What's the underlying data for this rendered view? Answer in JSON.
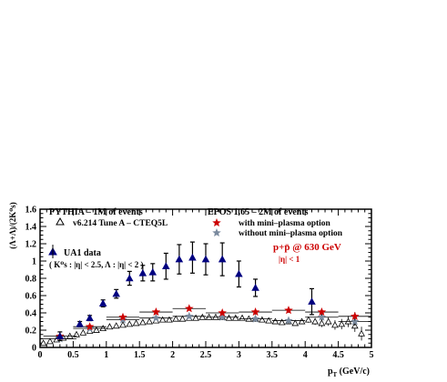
{
  "chart_data": {
    "type": "scatter",
    "xlabel_main": "p",
    "xlabel_sub": "T",
    "xlabel_unit": " (GeV/c)",
    "ylabel": "(Λ+Λ)/(2K⁰s)",
    "xlim": [
      0,
      5
    ],
    "ylim": [
      0,
      1.6
    ],
    "x_ticks": [
      0,
      0.5,
      1,
      1.5,
      2,
      2.5,
      3,
      3.5,
      4,
      4.5,
      5
    ],
    "x_tick_labels": [
      "0",
      "0.5",
      "1",
      "1.5",
      "2",
      "2.5",
      "3",
      "3.5",
      "4",
      "4.5",
      "5"
    ],
    "y_ticks": [
      0,
      0.2,
      0.4,
      0.6,
      0.8,
      1,
      1.2,
      1.4,
      1.6
    ],
    "y_tick_labels": [
      "0",
      "0.2",
      "0.4",
      "0.6",
      "0.8",
      "1",
      "1.2",
      "1.4",
      "1.6"
    ],
    "grid": false,
    "legend_left_title": "PYTHIA  – 1M of events",
    "legend_left_entry": "v6.214 Tune A – CTEQ5L",
    "legend_right_title": "EPOS 1.65  – 2M of events",
    "legend_right_entry1": "with mini–plasma option",
    "legend_right_entry2": "without mini–plasma option",
    "legend_ua1": "UA1 data",
    "legend_ua1_cuts": "( K⁰s : |η| < 2.5, Λ : |η| < 2 )",
    "annotation_system": "p+p̄ @ 630 GeV",
    "annotation_eta": "|η| < 1",
    "colors": {
      "ua1": "#000080",
      "epos_with": "#cc0000",
      "epos_without": "#7a8a9e",
      "pythia": "#000000",
      "annotation": "#cc0000",
      "axes": "#000000"
    },
    "series": [
      {
        "name": "UA1 data",
        "marker": "filled-triangle",
        "x": [
          0.3,
          0.6,
          0.75,
          0.95,
          1.15,
          1.35,
          1.55,
          1.7,
          1.9,
          2.1,
          2.3,
          2.5,
          2.75,
          3.0,
          3.25,
          4.1
        ],
        "y": [
          0.13,
          0.27,
          0.34,
          0.51,
          0.62,
          0.8,
          0.86,
          0.87,
          0.94,
          1.02,
          1.04,
          1.02,
          1.02,
          0.85,
          0.69,
          0.53
        ],
        "err": [
          0.05,
          0.03,
          0.03,
          0.04,
          0.05,
          0.08,
          0.09,
          0.1,
          0.15,
          0.17,
          0.18,
          0.18,
          0.19,
          0.15,
          0.1,
          0.15
        ]
      },
      {
        "name": "with mini–plasma option",
        "marker": "star",
        "x": [
          0.3,
          0.75,
          1.25,
          1.75,
          2.25,
          2.75,
          3.25,
          3.75,
          4.25,
          4.75
        ],
        "y": [
          0.13,
          0.24,
          0.35,
          0.41,
          0.45,
          0.4,
          0.41,
          0.43,
          0.41,
          0.36
        ],
        "err": [
          0.02,
          0.02,
          0.02,
          0.02,
          0.02,
          0.02,
          0.03,
          0.03,
          0.04,
          0.05
        ]
      },
      {
        "name": "without mini–plasma option",
        "marker": "star",
        "x": [
          0.3,
          0.75,
          1.25,
          1.75,
          2.25,
          2.75,
          3.25,
          3.75,
          4.25,
          4.75
        ],
        "y": [
          0.1,
          0.22,
          0.32,
          0.34,
          0.36,
          0.35,
          0.33,
          0.31,
          0.35,
          0.3
        ],
        "err": [
          0.02,
          0.02,
          0.02,
          0.02,
          0.02,
          0.02,
          0.03,
          0.03,
          0.04,
          0.05
        ]
      },
      {
        "name": "v6.214 Tune A – CTEQ5L",
        "marker": "open-triangle",
        "x": [
          0.05,
          0.15,
          0.25,
          0.35,
          0.45,
          0.55,
          0.65,
          0.75,
          0.85,
          0.95,
          1.05,
          1.15,
          1.25,
          1.35,
          1.45,
          1.55,
          1.65,
          1.75,
          1.85,
          1.95,
          2.05,
          2.15,
          2.25,
          2.35,
          2.45,
          2.55,
          2.65,
          2.75,
          2.85,
          2.95,
          3.05,
          3.15,
          3.25,
          3.35,
          3.45,
          3.55,
          3.65,
          3.75,
          3.85,
          3.95,
          4.05,
          4.15,
          4.25,
          4.35,
          4.45,
          4.55,
          4.65,
          4.75,
          4.85
        ],
        "y": [
          0.05,
          0.07,
          0.09,
          0.11,
          0.13,
          0.15,
          0.17,
          0.19,
          0.2,
          0.22,
          0.24,
          0.25,
          0.26,
          0.27,
          0.28,
          0.29,
          0.3,
          0.31,
          0.32,
          0.32,
          0.33,
          0.33,
          0.34,
          0.34,
          0.35,
          0.35,
          0.35,
          0.35,
          0.34,
          0.34,
          0.34,
          0.33,
          0.33,
          0.32,
          0.31,
          0.3,
          0.29,
          0.3,
          0.28,
          0.3,
          0.32,
          0.3,
          0.28,
          0.3,
          0.26,
          0.27,
          0.3,
          0.25,
          0.16
        ],
        "err": [
          0.005,
          0.005,
          0.005,
          0.005,
          0.005,
          0.005,
          0.005,
          0.005,
          0.005,
          0.005,
          0.005,
          0.005,
          0.005,
          0.005,
          0.005,
          0.005,
          0.005,
          0.005,
          0.005,
          0.005,
          0.005,
          0.005,
          0.005,
          0.005,
          0.005,
          0.005,
          0.006,
          0.006,
          0.007,
          0.007,
          0.008,
          0.009,
          0.01,
          0.012,
          0.014,
          0.016,
          0.018,
          0.02,
          0.025,
          0.03,
          0.035,
          0.04,
          0.045,
          0.05,
          0.055,
          0.06,
          0.065,
          0.07,
          0.08
        ]
      }
    ]
  }
}
